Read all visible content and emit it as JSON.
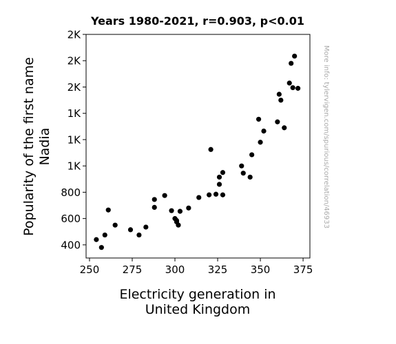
{
  "chart_data": {
    "type": "scatter",
    "title": "Years 1980-2021, r=0.903, p<0.01",
    "xlabel": [
      "Electricity generation in",
      "United Kingdom"
    ],
    "ylabel": [
      "Popularity of the first name",
      "Nadia"
    ],
    "side_note": "More info: tylervigen.com/spurious/correlation/46933",
    "xlim": [
      248,
      379
    ],
    "ylim": [
      300,
      2000
    ],
    "x_ticks": [
      {
        "value": 250,
        "label": "250"
      },
      {
        "value": 275,
        "label": "275"
      },
      {
        "value": 300,
        "label": "300"
      },
      {
        "value": 325,
        "label": "325"
      },
      {
        "value": 350,
        "label": "350"
      },
      {
        "value": 375,
        "label": "375"
      }
    ],
    "y_ticks": [
      {
        "value": 400,
        "label": "400"
      },
      {
        "value": 600,
        "label": "600"
      },
      {
        "value": 800,
        "label": "800"
      },
      {
        "value": 1000,
        "label": "1K"
      },
      {
        "value": 1200,
        "label": "1K"
      },
      {
        "value": 1400,
        "label": "1K"
      },
      {
        "value": 1600,
        "label": "2K"
      },
      {
        "value": 1800,
        "label": "2K"
      },
      {
        "value": 2000,
        "label": "2K"
      }
    ],
    "grid": false,
    "marker_color": "#000000",
    "points": [
      {
        "x": 254,
        "y": 440
      },
      {
        "x": 257,
        "y": 380
      },
      {
        "x": 259,
        "y": 475
      },
      {
        "x": 261,
        "y": 665
      },
      {
        "x": 265,
        "y": 550
      },
      {
        "x": 274,
        "y": 515
      },
      {
        "x": 279,
        "y": 475
      },
      {
        "x": 283,
        "y": 535
      },
      {
        "x": 288,
        "y": 745
      },
      {
        "x": 288,
        "y": 685
      },
      {
        "x": 294,
        "y": 775
      },
      {
        "x": 298,
        "y": 660
      },
      {
        "x": 300,
        "y": 600
      },
      {
        "x": 301,
        "y": 575
      },
      {
        "x": 301,
        "y": 585
      },
      {
        "x": 302,
        "y": 550
      },
      {
        "x": 303,
        "y": 655
      },
      {
        "x": 308,
        "y": 680
      },
      {
        "x": 314,
        "y": 760
      },
      {
        "x": 320,
        "y": 780
      },
      {
        "x": 321,
        "y": 1125
      },
      {
        "x": 324,
        "y": 785
      },
      {
        "x": 326,
        "y": 915
      },
      {
        "x": 326,
        "y": 860
      },
      {
        "x": 328,
        "y": 780
      },
      {
        "x": 328,
        "y": 950
      },
      {
        "x": 339,
        "y": 1000
      },
      {
        "x": 340,
        "y": 945
      },
      {
        "x": 344,
        "y": 915
      },
      {
        "x": 345,
        "y": 1085
      },
      {
        "x": 349,
        "y": 1355
      },
      {
        "x": 350,
        "y": 1180
      },
      {
        "x": 352,
        "y": 1265
      },
      {
        "x": 360,
        "y": 1335
      },
      {
        "x": 361,
        "y": 1545
      },
      {
        "x": 362,
        "y": 1500
      },
      {
        "x": 364,
        "y": 1290
      },
      {
        "x": 367,
        "y": 1630
      },
      {
        "x": 368,
        "y": 1780
      },
      {
        "x": 369,
        "y": 1595
      },
      {
        "x": 370,
        "y": 1835
      },
      {
        "x": 372,
        "y": 1590
      }
    ]
  }
}
